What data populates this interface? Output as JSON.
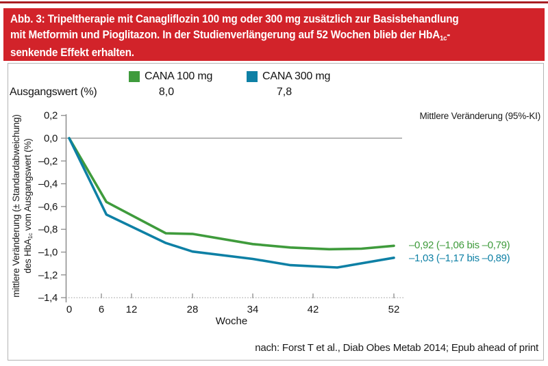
{
  "banner": {
    "line1": "Abb. 3: Tripeltherapie mit Canagliflozin 100 mg oder 300 mg zusätzlich zur Basisbehandlung",
    "line2_pre": "mit Metformin und Pioglitazon. In der Studienverlängerung auf 52 Wochen blieb der HbA",
    "line2_sub": "1c",
    "line2_post": "-",
    "line3": "senkende Effekt erhalten.",
    "background_color": "#d2232a",
    "top_rule_color": "#a81e23"
  },
  "legend": {
    "baseline_label": "Ausgangswert (%)",
    "items": [
      {
        "label": "CANA 100 mg",
        "baseline": "8,0",
        "color": "#3f9b3c"
      },
      {
        "label": "CANA 300 mg",
        "baseline": "7,8",
        "color": "#0e80a5"
      }
    ]
  },
  "right_header": "Mittlere Veränderung (95%-KI)",
  "y_axis_label": {
    "line1": "mittlere Veränderung (± Standardabweichung)",
    "line2_pre": "des HbA",
    "line2_sub": "1c",
    "line2_post": " vom Ausgangswert (%)"
  },
  "footer": "nach: Forst T et al., Diab Obes Metab 2014; Epub ahead of print",
  "chart_data": {
    "type": "line",
    "xlabel": "Woche",
    "x_ticks": [
      0,
      6,
      12,
      28,
      34,
      42,
      52
    ],
    "x_tick_labels": [
      "0",
      "6",
      "12",
      "28",
      "34",
      "42",
      "52"
    ],
    "y_ticks": [
      0.2,
      0.0,
      -0.2,
      -0.4,
      -0.6,
      -0.8,
      -1.0,
      -1.2,
      -1.4
    ],
    "y_tick_labels": [
      "0,2",
      "0,0",
      "–0,2",
      "–0,4",
      "–0,6",
      "–0,8",
      "–1,0",
      "–1,2",
      "–1,4"
    ],
    "ylim": [
      -1.4,
      0.2
    ],
    "grid": "off",
    "legend_position": "top",
    "series": [
      {
        "name": "CANA 100 mg",
        "color": "#3f9b3c",
        "baseline_hba1c_pct": "8,0",
        "final_value": -0.92,
        "annotation": "–0,92 (–1,06 bis –0,79)",
        "points": [
          [
            0,
            0.0
          ],
          [
            7,
            -0.56
          ],
          [
            21,
            -0.835
          ],
          [
            28,
            -0.84
          ],
          [
            34,
            -0.93
          ],
          [
            39,
            -0.96
          ],
          [
            44,
            -0.975
          ],
          [
            48,
            -0.97
          ],
          [
            52,
            -0.945
          ]
        ]
      },
      {
        "name": "CANA 300 mg",
        "color": "#0e80a5",
        "baseline_hba1c_pct": "7,8",
        "final_value": -1.03,
        "annotation": "–1,03 (–1,17 bis –0,89)",
        "points": [
          [
            0,
            0.0
          ],
          [
            7,
            -0.67
          ],
          [
            21,
            -0.92
          ],
          [
            28,
            -0.995
          ],
          [
            34,
            -1.06
          ],
          [
            39,
            -1.115
          ],
          [
            45,
            -1.135
          ],
          [
            52,
            -1.05
          ]
        ]
      }
    ]
  }
}
